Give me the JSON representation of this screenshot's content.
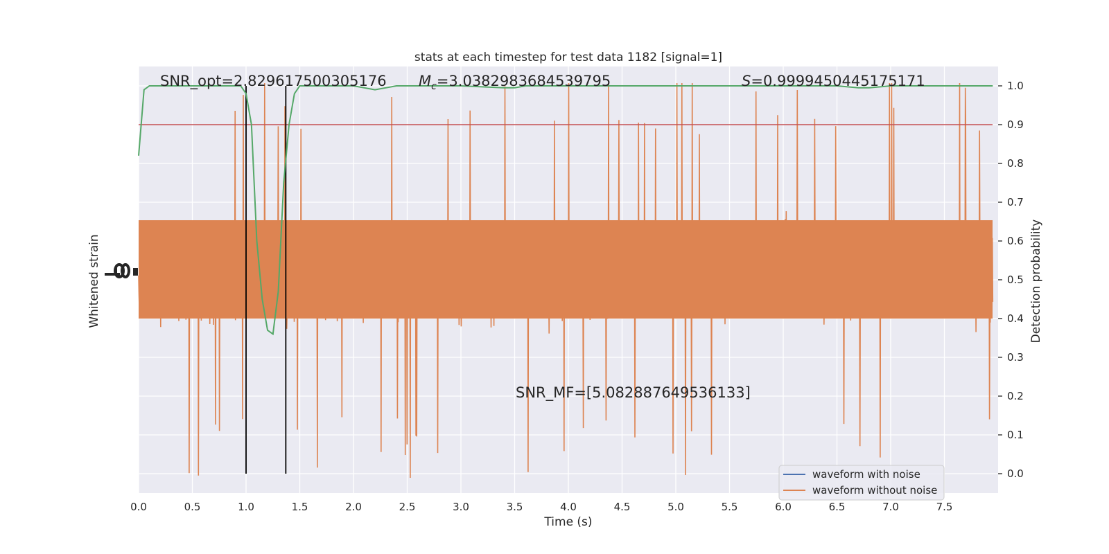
{
  "chart_data": {
    "type": "line",
    "title": "stats at each timestep for test data 1182 [signal=1]",
    "xlabel": "Time (s)",
    "ylabel_left": "Whitened strain",
    "ylabel_right": "Detection probability",
    "xlim": [
      0.0,
      8.0
    ],
    "ylim_right": [
      -0.05,
      1.05
    ],
    "x_ticks": [
      "0.0",
      "0.5",
      "1.0",
      "1.5",
      "2.0",
      "2.5",
      "3.0",
      "3.5",
      "4.0",
      "4.5",
      "5.0",
      "5.5",
      "6.0",
      "6.5",
      "7.0",
      "7.5"
    ],
    "x_tick_values": [
      0.0,
      0.5,
      1.0,
      1.5,
      2.0,
      2.5,
      3.0,
      3.5,
      4.0,
      4.5,
      5.0,
      5.5,
      6.0,
      6.5,
      7.0,
      7.5
    ],
    "y_ticks_right": [
      "0.0",
      "0.1",
      "0.2",
      "0.3",
      "0.4",
      "0.5",
      "0.6",
      "0.7",
      "0.8",
      "0.9",
      "1.0"
    ],
    "y_tick_values_right": [
      0.0,
      0.1,
      0.2,
      0.3,
      0.4,
      0.5,
      0.6,
      0.7,
      0.8,
      0.9,
      1.0
    ],
    "grid": true,
    "legend_position": "lower-right",
    "series": [
      {
        "name": "waveform with noise",
        "color": "#4c72b0"
      },
      {
        "name": "waveform without noise",
        "color": "#dd8452"
      }
    ],
    "detection_probability": {
      "color": "#55a868",
      "x": [
        0.0,
        0.05,
        0.1,
        0.2,
        0.3,
        0.4,
        0.5,
        0.6,
        0.7,
        0.8,
        0.9,
        0.95,
        1.0,
        1.05,
        1.1,
        1.15,
        1.2,
        1.25,
        1.3,
        1.35,
        1.4,
        1.45,
        1.5,
        1.6,
        1.8,
        2.0,
        2.1,
        2.2,
        2.3,
        2.4,
        2.6,
        3.0,
        3.4,
        3.5,
        3.6,
        4.0,
        5.0,
        6.0,
        6.5,
        6.7,
        6.8,
        7.0,
        7.95
      ],
      "y": [
        0.82,
        0.99,
        1.0,
        1.0,
        1.0,
        1.0,
        1.0,
        1.0,
        1.0,
        1.0,
        1.0,
        1.0,
        0.98,
        0.9,
        0.6,
        0.45,
        0.37,
        0.36,
        0.47,
        0.75,
        0.9,
        0.98,
        1.0,
        1.0,
        1.0,
        1.0,
        0.995,
        0.99,
        0.995,
        1.0,
        1.0,
        1.0,
        0.995,
        0.995,
        1.0,
        1.0,
        1.0,
        1.0,
        1.0,
        0.995,
        0.995,
        1.0,
        1.0
      ]
    },
    "threshold": {
      "value": 0.9,
      "color": "#c44e52"
    },
    "vertical_lines": [
      1.0,
      1.37
    ],
    "annotations": {
      "snr_opt": "SNR_opt=2.829617500305176",
      "mc_symbol": "M",
      "mc_sub": "c",
      "mc_value": "=3.0382983684539795",
      "s_symbol": "S",
      "s_value": "=0.9999450445175171",
      "snr_mf": "SNR_MF=[5.082887649536133]"
    }
  }
}
